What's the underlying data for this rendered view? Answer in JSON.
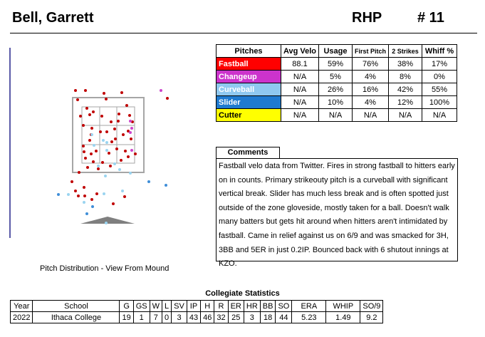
{
  "header": {
    "name": "Bell, Garrett",
    "hand": "RHP",
    "number": "# 11"
  },
  "pitch_plot": {
    "caption": "Pitch Distribution - View From Mound",
    "colors": {
      "Fastball": "#c00000",
      "Changeup": "#cc44cc",
      "Curveball": "#9ad4f0",
      "Slider": "#3f8ed8"
    }
  },
  "pitch_table": {
    "headers": [
      "Pitches",
      "Avg Velo",
      "Usage",
      "First Pitch",
      "2 Strikes",
      "Whiff %"
    ],
    "rows": [
      {
        "name": "Fastball",
        "color": "#ff0000",
        "text_color": "#ffffff",
        "cells": [
          "88.1",
          "59%",
          "76%",
          "38%",
          "17%"
        ]
      },
      {
        "name": "Changeup",
        "color": "#cc33cc",
        "text_color": "#ffffff",
        "cells": [
          "N/A",
          "5%",
          "4%",
          "8%",
          "0%"
        ]
      },
      {
        "name": "Curveball",
        "color": "#8fc8f0",
        "text_color": "#ffffff",
        "cells": [
          "N/A",
          "26%",
          "16%",
          "42%",
          "55%"
        ]
      },
      {
        "name": "Slider",
        "color": "#1f7ad0",
        "text_color": "#ffffff",
        "cells": [
          "N/A",
          "10%",
          "4%",
          "12%",
          "100%"
        ]
      },
      {
        "name": "Cutter",
        "color": "#ffff00",
        "text_color": "#000000",
        "cells": [
          "N/A",
          "N/A",
          "N/A",
          "N/A",
          "N/A"
        ]
      }
    ]
  },
  "comments": {
    "title": "Comments",
    "text": "Fastball velo data from Twitter. Fires in strong fastball to hitters early on in counts. Primary strikeouty pitch is a curveball with significant vertical break. Slider has much less break and is often spotted just outside of the zone gloveside, mostly taken for a ball. Doesn't walk many batters but gets hit around when hitters aren't intimidated by fastball. Came in relief against us on 6/9 and was smacked for 3H, 3BB and 5ER in just 0.2IP. Bounced back with 6 shutout innings at KZO."
  },
  "stats": {
    "title": "Collegiate Statistics",
    "headers": [
      "Year",
      "School",
      "G",
      "GS",
      "W",
      "L",
      "SV",
      "IP",
      "H",
      "R",
      "ER",
      "HR",
      "BB",
      "SO",
      "ERA",
      "WHIP",
      "SO/9"
    ],
    "row": [
      "2022",
      "Ithaca College",
      "19",
      "1",
      "7",
      "0",
      "3",
      "43",
      "46",
      "32",
      "25",
      "3",
      "18",
      "44",
      "5.23",
      "1.49",
      "9.2"
    ]
  }
}
